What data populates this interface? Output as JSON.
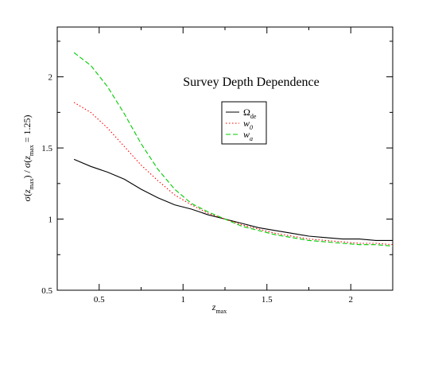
{
  "chart_data": {
    "type": "line",
    "title": "Survey Depth Dependence",
    "xlabel": "z_max",
    "ylabel": "σ(z_max) / σ(z_max = 1.25)",
    "xlim": [
      0.25,
      2.25
    ],
    "ylim": [
      0.5,
      2.35
    ],
    "xticks": [
      0.5,
      1,
      1.5,
      2
    ],
    "xtick_labels": [
      "0.5",
      "1",
      "1.5",
      "2"
    ],
    "yticks": [
      0.5,
      1,
      1.5,
      2
    ],
    "ytick_labels": [
      "0.5",
      "1",
      "1.5",
      "2"
    ],
    "grid": false,
    "legend_position": "upper-center",
    "series": [
      {
        "name": "Ω_de",
        "color": "#000000",
        "style": "solid",
        "x": [
          0.35,
          0.45,
          0.55,
          0.65,
          0.75,
          0.85,
          0.95,
          1.05,
          1.15,
          1.25,
          1.35,
          1.45,
          1.55,
          1.65,
          1.75,
          1.85,
          1.95,
          2.05,
          2.15,
          2.25
        ],
        "y": [
          1.42,
          1.37,
          1.33,
          1.28,
          1.21,
          1.15,
          1.1,
          1.07,
          1.03,
          1.0,
          0.97,
          0.94,
          0.92,
          0.9,
          0.88,
          0.87,
          0.86,
          0.86,
          0.85,
          0.85
        ]
      },
      {
        "name": "w_0",
        "color": "#ff0000",
        "style": "dotted",
        "x": [
          0.35,
          0.45,
          0.55,
          0.65,
          0.75,
          0.85,
          0.95,
          1.05,
          1.15,
          1.25,
          1.35,
          1.45,
          1.55,
          1.65,
          1.75,
          1.85,
          1.95,
          2.05,
          2.15,
          2.25
        ],
        "y": [
          1.82,
          1.75,
          1.64,
          1.51,
          1.38,
          1.27,
          1.17,
          1.1,
          1.04,
          1.0,
          0.96,
          0.93,
          0.9,
          0.88,
          0.86,
          0.85,
          0.84,
          0.83,
          0.83,
          0.82
        ]
      },
      {
        "name": "w_a",
        "color": "#00cc00",
        "style": "dashed",
        "x": [
          0.35,
          0.45,
          0.55,
          0.65,
          0.75,
          0.85,
          0.95,
          1.05,
          1.15,
          1.25,
          1.35,
          1.45,
          1.55,
          1.65,
          1.75,
          1.85,
          1.95,
          2.05,
          2.15,
          2.25
        ],
        "y": [
          2.17,
          2.08,
          1.93,
          1.74,
          1.53,
          1.35,
          1.21,
          1.11,
          1.05,
          1.0,
          0.95,
          0.92,
          0.89,
          0.87,
          0.85,
          0.84,
          0.83,
          0.82,
          0.82,
          0.81
        ]
      }
    ]
  }
}
